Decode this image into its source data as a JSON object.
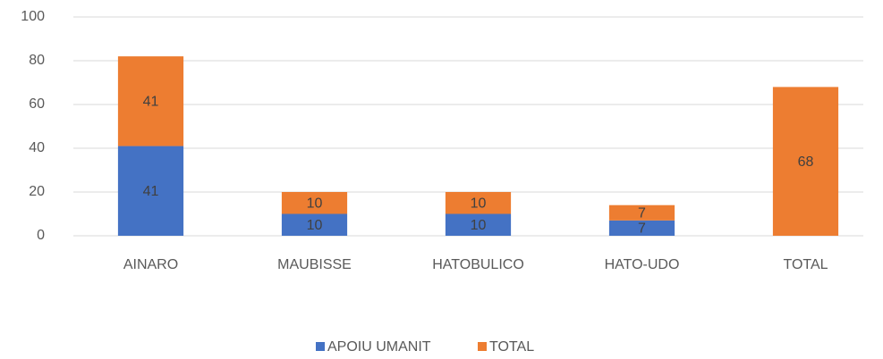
{
  "chart_data": {
    "type": "bar",
    "stacked": true,
    "categories": [
      "AINARO",
      "MAUBISSE",
      "HATOBULICO",
      "HATO-UDO",
      "TOTAL"
    ],
    "series": [
      {
        "name": "APOIU UMANIT",
        "color": "#4472c4",
        "values": [
          41,
          10,
          10,
          7,
          null
        ]
      },
      {
        "name": "TOTAL",
        "color": "#ed7d31",
        "values": [
          41,
          10,
          10,
          7,
          68
        ]
      }
    ],
    "ylim": [
      0,
      100
    ],
    "yticks": [
      0,
      20,
      40,
      60,
      80,
      100
    ],
    "grid": true,
    "legend": "bottom"
  }
}
